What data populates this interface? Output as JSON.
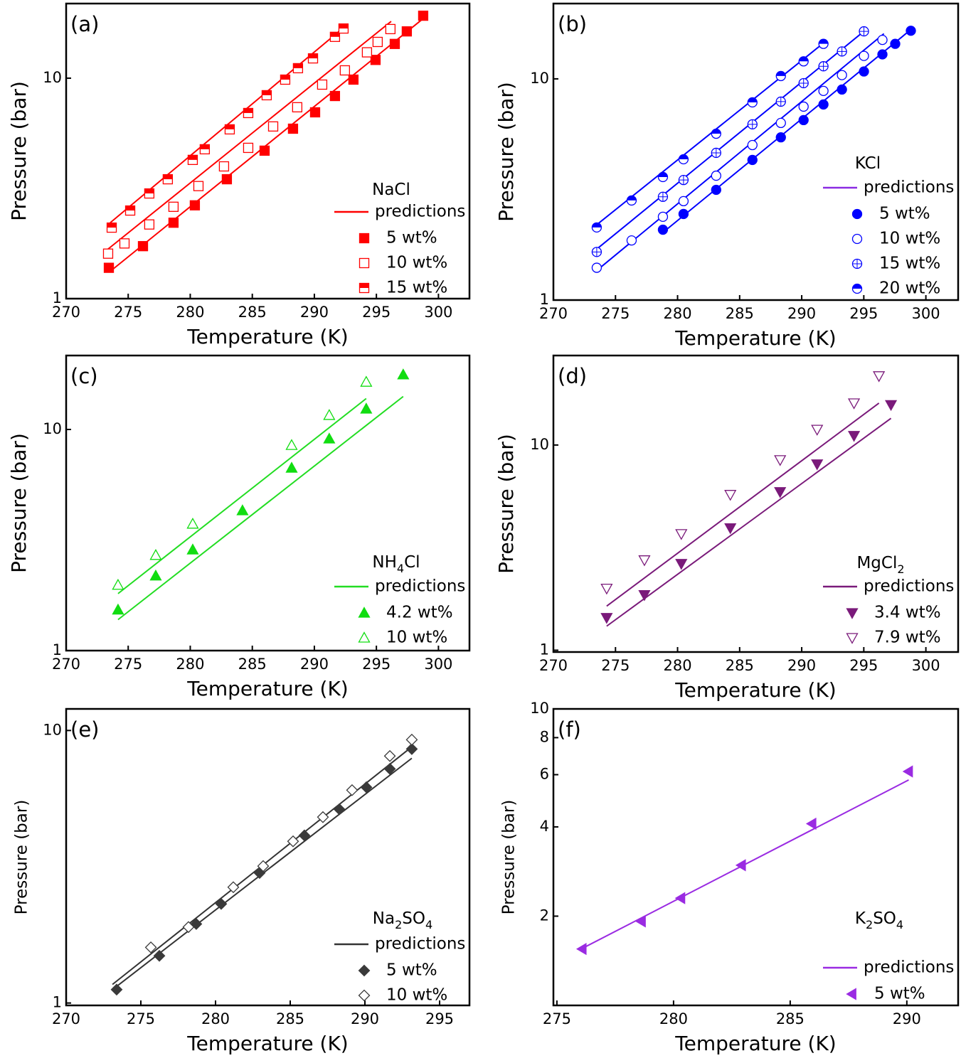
{
  "chart_data": [
    {
      "type": "scatter",
      "panel_label": "(a)",
      "x_label": "Temperature (K)",
      "y_label": "Pressure (bar)",
      "log_y": true,
      "legend_title": "NaCl",
      "xlim": [
        270,
        302.5
      ],
      "ylim": [
        1,
        21.8
      ],
      "xticks": [
        270,
        275,
        280,
        285,
        290,
        295,
        300
      ],
      "yticks": [
        1,
        10
      ],
      "predictions": {
        "name": "predictions",
        "color": "#ff0000",
        "lines": [
          {
            "x": [
              273.55,
              298.65
            ],
            "values": [
              1.33,
              18.4
            ]
          },
          {
            "x": [
              273.27,
              296.19
            ],
            "values": [
              1.66,
              18.1
            ]
          },
          {
            "x": [
              273.55,
              292.64
            ],
            "values": [
              2.21,
              17.5
            ]
          }
        ]
      },
      "series": [
        {
          "name": "5 wt%",
          "color": "#ff0000",
          "marker": "square",
          "x": [
            273.44,
            276.19,
            278.65,
            280.37,
            282.95,
            285.99,
            288.28,
            290.06,
            291.66,
            293.15,
            294.93,
            296.48,
            297.45,
            298.77
          ],
          "values": [
            1.38,
            1.73,
            2.21,
            2.65,
            3.48,
            4.69,
            5.9,
            7.0,
            8.3,
            9.85,
            12.1,
            14.3,
            16.3,
            19.2
          ]
        },
        {
          "name": "10 wt%",
          "color": "#ff0000",
          "marker": "square-open",
          "x": [
            273.38,
            274.7,
            276.7,
            278.65,
            280.66,
            282.72,
            284.67,
            286.68,
            288.62,
            290.63,
            292.46,
            294.24,
            295.1,
            296.13
          ],
          "values": [
            1.6,
            1.78,
            2.17,
            2.61,
            3.24,
            3.98,
            4.83,
            6.04,
            7.38,
            9.35,
            10.85,
            13.1,
            14.6,
            16.7
          ]
        },
        {
          "name": "15 wt%",
          "color": "#ff0000",
          "marker": "square-half",
          "x": [
            273.67,
            275.16,
            276.7,
            278.19,
            280.2,
            281.17,
            283.18,
            284.67,
            286.16,
            287.65,
            288.68,
            289.89,
            291.66,
            292.35
          ],
          "values": [
            2.1,
            2.51,
            3.0,
            3.48,
            4.26,
            4.76,
            5.86,
            6.95,
            8.37,
            9.85,
            11.1,
            12.3,
            15.4,
            16.8
          ]
        }
      ]
    },
    {
      "type": "scatter",
      "panel_label": "(b)",
      "x_label": "Temperature (K)",
      "y_label": "Pressure (bar)",
      "log_y": true,
      "legend_title": "KCl",
      "xlim": [
        270,
        302.6
      ],
      "ylim": [
        1,
        21.9
      ],
      "xticks": [
        270,
        275,
        280,
        285,
        290,
        295,
        300
      ],
      "yticks": [
        1,
        10
      ],
      "predictions": {
        "name": "predictions",
        "color": "#0000ff",
        "legend_color": "#8a2be2",
        "lines": [
          {
            "x": [
              278.82,
              298.79
            ],
            "values": [
              2.02,
              16.7
            ]
          },
          {
            "x": [
              273.49,
              296.62
            ],
            "values": [
              1.36,
              16.0
            ]
          },
          {
            "x": [
              273.49,
              295.01
            ],
            "values": [
              1.7,
              16.4
            ]
          },
          {
            "x": [
              273.49,
              291.81
            ],
            "values": [
              2.19,
              14.6
            ]
          }
        ]
      },
      "series": [
        {
          "name": "5 wt%",
          "color": "#0000ff",
          "marker": "circle",
          "x": [
            278.82,
            280.48,
            283.11,
            286.03,
            288.32,
            290.15,
            291.75,
            293.24,
            295.01,
            296.5,
            297.53,
            298.79
          ],
          "values": [
            2.08,
            2.45,
            3.15,
            4.3,
            5.44,
            6.51,
            7.66,
            8.95,
            10.8,
            12.9,
            14.4,
            16.5
          ]
        },
        {
          "name": "10 wt%",
          "color": "#0000ff",
          "marker": "circle-open",
          "x": [
            273.49,
            276.3,
            278.82,
            280.48,
            283.11,
            286.03,
            288.32,
            290.15,
            291.75,
            293.24,
            295.01,
            296.5
          ],
          "values": [
            1.4,
            1.86,
            2.38,
            2.8,
            3.65,
            5.02,
            6.32,
            7.49,
            8.82,
            10.4,
            12.7,
            15.0
          ]
        },
        {
          "name": "15 wt%",
          "color": "#0000ff",
          "marker": "circle-cross",
          "x": [
            273.49,
            278.82,
            280.48,
            283.11,
            286.03,
            288.32,
            290.15,
            291.75,
            293.24,
            295.01
          ],
          "values": [
            1.65,
            2.93,
            3.49,
            4.63,
            6.23,
            7.89,
            9.56,
            11.4,
            13.3,
            16.4
          ]
        },
        {
          "name": "20 wt%",
          "color": "#0000ff",
          "marker": "circle-half",
          "x": [
            273.49,
            276.3,
            278.82,
            280.48,
            283.11,
            286.03,
            288.32,
            290.15,
            291.75
          ],
          "values": [
            2.13,
            2.82,
            3.6,
            4.33,
            5.65,
            7.83,
            10.3,
            12.0,
            14.4
          ]
        }
      ]
    },
    {
      "type": "scatter",
      "panel_label": "(c)",
      "x_label": "Temperature (K)",
      "y_label": "Pressure (bar)",
      "log_y": true,
      "legend_title": "NH4Cl",
      "xlim": [
        270,
        302.5
      ],
      "ylim": [
        1,
        21.6
      ],
      "xticks": [
        270,
        275,
        280,
        285,
        290,
        295,
        300
      ],
      "yticks": [
        1,
        10
      ],
      "predictions": {
        "name": "predictions",
        "color": "#22dd22",
        "lines": [
          {
            "x": [
              274.18,
              297.16
            ],
            "values": [
              1.38,
              14.1
            ]
          },
          {
            "x": [
              274.18,
              294.18
            ],
            "values": [
              1.81,
              13.8
            ]
          }
        ]
      },
      "series": [
        {
          "name": "4.2 wt%",
          "color": "#11dd11",
          "marker": "triangle",
          "x": [
            274.18,
            277.22,
            280.2,
            284.21,
            288.17,
            291.2,
            294.18,
            297.16
          ],
          "values": [
            1.53,
            2.18,
            2.86,
            4.3,
            6.7,
            9.08,
            12.4,
            17.7
          ]
        },
        {
          "name": "10 wt%",
          "color": "#11dd11",
          "marker": "triangle-open",
          "x": [
            274.18,
            277.22,
            280.2,
            288.17,
            291.2,
            294.18
          ],
          "values": [
            1.98,
            2.7,
            3.74,
            8.49,
            11.6,
            16.4
          ]
        }
      ]
    },
    {
      "type": "scatter",
      "panel_label": "(d)",
      "x_label": "Temperature (K)",
      "y_label": "Pressure (bar)",
      "log_y": true,
      "legend_title": "MgCl2",
      "xlim": [
        270,
        302.6
      ],
      "ylim": [
        0.98,
        27.3
      ],
      "xticks": [
        270,
        275,
        280,
        285,
        290,
        295,
        300
      ],
      "yticks": [
        1,
        10
      ],
      "predictions": {
        "name": "predictions",
        "color": "#7a1a7a",
        "lines": [
          {
            "x": [
              274.29,
              297.19
            ],
            "values": [
              1.31,
              13.5
            ]
          },
          {
            "x": [
              274.29,
              296.22
            ],
            "values": [
              1.64,
              16.0
            ]
          }
        ]
      },
      "series": [
        {
          "name": "3.4 wt%",
          "color": "#7a1a7a",
          "marker": "triangle-down",
          "x": [
            274.29,
            277.33,
            280.3,
            284.25,
            288.26,
            291.24,
            294.21,
            297.19
          ],
          "values": [
            1.44,
            1.86,
            2.64,
            3.94,
            5.91,
            8.07,
            11.1,
            15.7
          ]
        },
        {
          "name": "7.9 wt%",
          "color": "#7a1a7a",
          "marker": "triangle-down-open",
          "x": [
            274.29,
            277.33,
            280.3,
            284.25,
            288.26,
            291.24,
            294.21,
            296.22
          ],
          "values": [
            2.0,
            2.75,
            3.69,
            5.73,
            8.46,
            11.9,
            16.0,
            21.7
          ]
        }
      ]
    },
    {
      "type": "scatter",
      "panel_label": "(e)",
      "x_label": "Temperature (K)",
      "y_label": "Pressure (bar)",
      "log_y": true,
      "legend_title": "Na2SO4",
      "xlim": [
        270,
        297
      ],
      "ylim": [
        0.98,
        12
      ],
      "xticks": [
        270,
        275,
        280,
        285,
        290,
        295
      ],
      "yticks": [
        1,
        10
      ],
      "predictions": {
        "name": "predictions",
        "color": "#333333",
        "lines": [
          {
            "x": [
              273.1,
              293.14
            ],
            "values": [
              1.12,
              7.91
            ]
          },
          {
            "x": [
              273.1,
              293.14
            ],
            "values": [
              1.17,
              8.71
            ]
          }
        ]
      },
      "series": [
        {
          "name": "5 wt%",
          "color": "#3a3a3a",
          "marker": "diamond",
          "x": [
            273.38,
            276.24,
            278.71,
            280.38,
            282.95,
            285.95,
            288.29,
            290.1,
            291.67,
            293.14
          ],
          "values": [
            1.12,
            1.49,
            1.95,
            2.31,
            3.0,
            4.12,
            5.14,
            6.19,
            7.23,
            8.55
          ]
        },
        {
          "name": "10 wt%",
          "color": "#3a3a3a",
          "marker": "diamond-open",
          "x": [
            275.67,
            278.19,
            281.19,
            283.19,
            285.19,
            287.19,
            289.14,
            291.67,
            293.14
          ],
          "values": [
            1.6,
            1.9,
            2.66,
            3.18,
            3.92,
            4.81,
            6.04,
            8.06,
            9.25
          ]
        }
      ]
    },
    {
      "type": "scatter",
      "panel_label": "(f)",
      "x_label": "Temperature (K)",
      "y_label": "Pressure (bar)",
      "log_y": true,
      "legend_title": "K2SO4",
      "xlim": [
        274.85,
        292.2
      ],
      "ylim": [
        1,
        10
      ],
      "xticks": [
        275,
        280,
        285,
        290
      ],
      "yticks": [
        2,
        4,
        6,
        8,
        10
      ],
      "predictions": {
        "name": "predictions",
        "color": "#9a2be2",
        "lines": [
          {
            "x": [
              275.97,
              290.08
            ],
            "values": [
              1.54,
              5.76
            ]
          }
        ]
      },
      "series": [
        {
          "name": "5 wt%",
          "color": "#9a2be2",
          "marker": "triangle-left",
          "x": [
            276.09,
            278.63,
            280.32,
            282.92,
            285.94,
            290.08
          ],
          "values": [
            1.55,
            1.92,
            2.3,
            2.97,
            4.1,
            6.15
          ]
        }
      ]
    }
  ]
}
